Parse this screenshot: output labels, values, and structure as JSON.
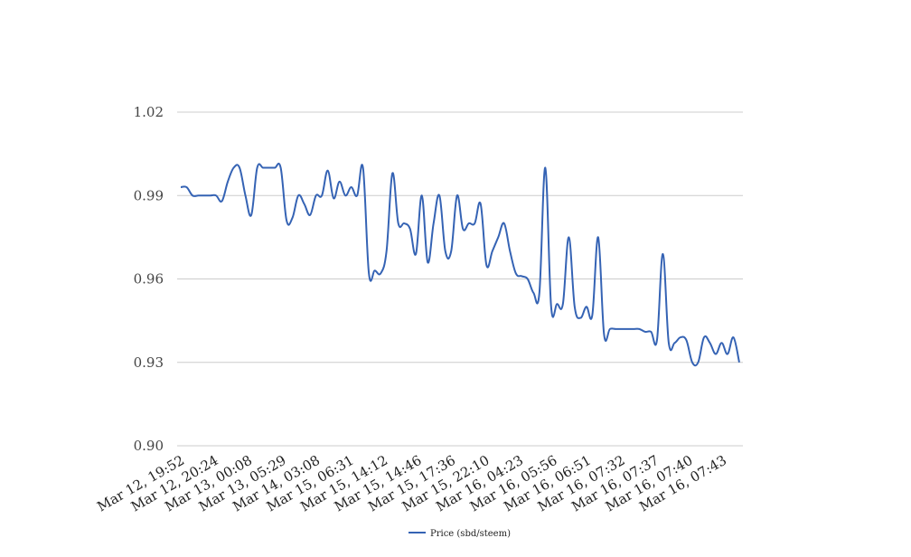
{
  "chart_data": {
    "type": "line",
    "title": "",
    "xlabel": "",
    "ylabel": "",
    "ylim": [
      0.9,
      1.02
    ],
    "yticks": [
      "0.90",
      "0.93",
      "0.96",
      "0.99",
      "1.02"
    ],
    "ytick_values": [
      0.9,
      0.93,
      0.96,
      0.99,
      1.02
    ],
    "grid": true,
    "legend_position": "bottom-center",
    "xtick_labels": [
      "Mar 12, 19:52",
      "Mar 12, 20:24",
      "Mar 13, 00:08",
      "Mar 13, 05:29",
      "Mar 14, 03:08",
      "Mar 15, 06:31",
      "Mar 15, 14:12",
      "Mar 15, 14:46",
      "Mar 15, 17:36",
      "Mar 15, 22:10",
      "Mar 16, 04:23",
      "Mar 16, 05:56",
      "Mar 16, 06:51",
      "Mar 16, 07:32",
      "Mar 16, 07:37",
      "Mar 16, 07:40",
      "Mar 16, 07:43"
    ],
    "series": [
      {
        "name": "Price (sbd/steem)",
        "color": "#3563b4",
        "values": [
          0.993,
          0.993,
          0.99,
          0.99,
          0.99,
          0.99,
          0.99,
          0.988,
          0.995,
          1.0,
          1.0,
          0.99,
          0.983,
          1.0,
          1.0,
          1.0,
          1.0,
          1.0,
          0.981,
          0.982,
          0.99,
          0.987,
          0.983,
          0.99,
          0.99,
          0.999,
          0.989,
          0.995,
          0.99,
          0.993,
          0.99,
          1.0,
          0.962,
          0.963,
          0.962,
          0.97,
          0.998,
          0.98,
          0.98,
          0.978,
          0.969,
          0.99,
          0.966,
          0.98,
          0.99,
          0.97,
          0.97,
          0.99,
          0.978,
          0.98,
          0.98,
          0.987,
          0.965,
          0.97,
          0.975,
          0.98,
          0.97,
          0.962,
          0.961,
          0.96,
          0.955,
          0.955,
          1.0,
          0.95,
          0.951,
          0.951,
          0.975,
          0.95,
          0.946,
          0.95,
          0.947,
          0.975,
          0.94,
          0.942,
          0.942,
          0.942,
          0.942,
          0.942,
          0.942,
          0.941,
          0.941,
          0.938,
          0.969,
          0.937,
          0.937,
          0.939,
          0.938,
          0.93,
          0.93,
          0.939,
          0.937,
          0.933,
          0.937,
          0.933,
          0.939,
          0.93
        ]
      }
    ]
  }
}
